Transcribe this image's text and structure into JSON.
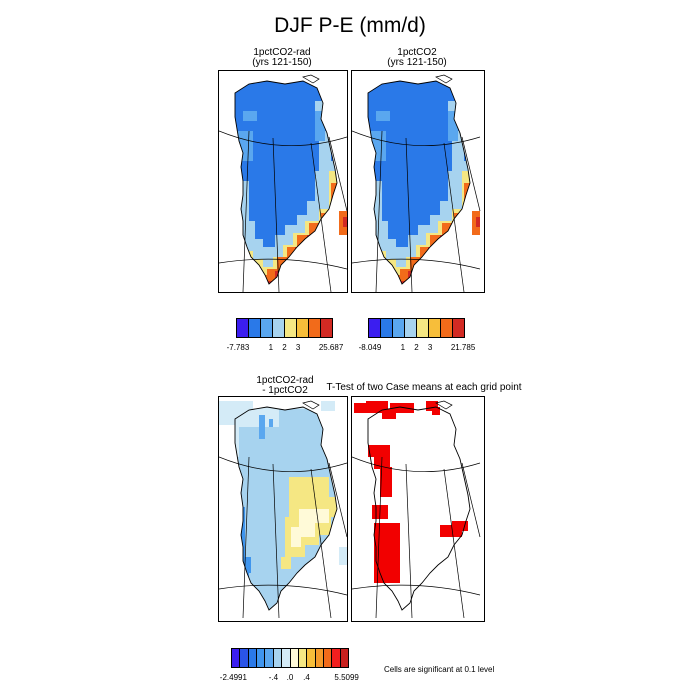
{
  "title": "DJF P-E (mm/d)",
  "panels": [
    {
      "title_line1": "1pctCO2-rad",
      "title_line2": "(yrs 121-150)"
    },
    {
      "title_line1": "1pctCO2",
      "title_line2": "(yrs 121-150)"
    },
    {
      "title_line1": "1pctCO2-rad",
      "title_line2": "- 1pctCO2"
    },
    {
      "title_line1": "T-Test of two Case means at each grid point",
      "title_line2": ""
    }
  ],
  "colorbars": [
    {
      "colors": [
        "#3b1ef0",
        "#2a79e8",
        "#5aa7ef",
        "#a7d3ef",
        "#f5e783",
        "#f7be3a",
        "#f26b1a",
        "#d22a23"
      ],
      "tick_labels": [
        "-7.783",
        "1",
        "2",
        "3",
        "25.687"
      ]
    },
    {
      "colors": [
        "#3b1ef0",
        "#2a79e8",
        "#5aa7ef",
        "#a7d3ef",
        "#f5e783",
        "#f7be3a",
        "#f26b1a",
        "#d22a23"
      ],
      "tick_labels": [
        "-8.049",
        "1",
        "2",
        "3",
        "21.785"
      ]
    },
    {
      "colors": [
        "#3b1ef0",
        "#2a54e8",
        "#2a79e8",
        "#3f95ee",
        "#5aa7ef",
        "#a7d3ef",
        "#d4ebf7",
        "#fffad8",
        "#f5e783",
        "#f7be3a",
        "#f59a2a",
        "#f26b1a",
        "#f21f1f",
        "#c8201e"
      ],
      "tick_labels": [
        "-2.4991",
        "-.4",
        ".0",
        ".4",
        "5.5099"
      ]
    }
  ],
  "significance_note": "Cells are significant at 0.1 level",
  "colors": {
    "significant": "#f20000"
  },
  "chart_data": [
    {
      "type": "heatmap",
      "title": "1pctCO2-rad (yrs 121-150)",
      "units": "mm/d",
      "range": [
        -7.783,
        25.687
      ],
      "levels": [
        1,
        2,
        3
      ]
    },
    {
      "type": "heatmap",
      "title": "1pctCO2 (yrs 121-150)",
      "units": "mm/d",
      "range": [
        -8.049,
        21.785
      ],
      "levels": [
        1,
        2,
        3
      ]
    },
    {
      "type": "heatmap",
      "title": "1pctCO2-rad - 1pctCO2",
      "units": "mm/d",
      "range": [
        -2.4991,
        5.5099
      ],
      "levels": [
        -0.4,
        0.0,
        0.4
      ]
    },
    {
      "type": "heatmap",
      "title": "T-Test of two Case means at each grid point",
      "significance_level": 0.1
    }
  ]
}
